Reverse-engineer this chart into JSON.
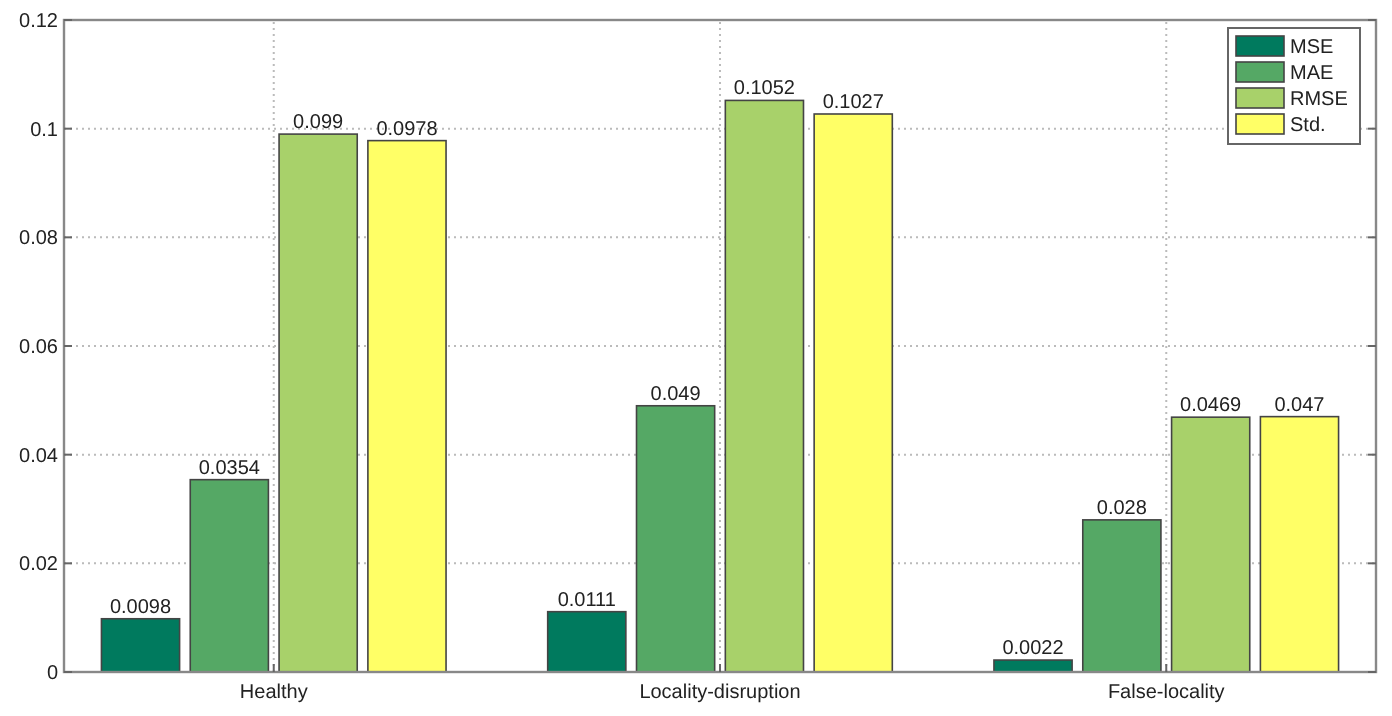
{
  "chart_data": {
    "type": "bar",
    "categories": [
      "Healthy",
      "Locality-disruption",
      "False-locality"
    ],
    "series": [
      {
        "name": "MSE",
        "color": "#007a5e",
        "values": [
          0.0098,
          0.0111,
          0.0022
        ]
      },
      {
        "name": "MAE",
        "color": "#55a865",
        "values": [
          0.0354,
          0.049,
          0.028
        ]
      },
      {
        "name": "RMSE",
        "color": "#a8d16a",
        "values": [
          0.099,
          0.1052,
          0.0469
        ]
      },
      {
        "name": "Std.",
        "color": "#ffff66",
        "values": [
          0.0978,
          0.1027,
          0.047
        ]
      }
    ],
    "value_labels": [
      [
        "0.0098",
        "0.0111",
        "0.0022"
      ],
      [
        "0.0354",
        "0.049",
        "0.028"
      ],
      [
        "0.099",
        "0.1052",
        "0.0469"
      ],
      [
        "0.0978",
        "0.1027",
        "0.047"
      ]
    ],
    "ylim": [
      0,
      0.12
    ],
    "yticks": [
      0,
      0.02,
      0.04,
      0.06,
      0.08,
      0.1,
      0.12
    ],
    "grid": true,
    "legend": "top right"
  }
}
